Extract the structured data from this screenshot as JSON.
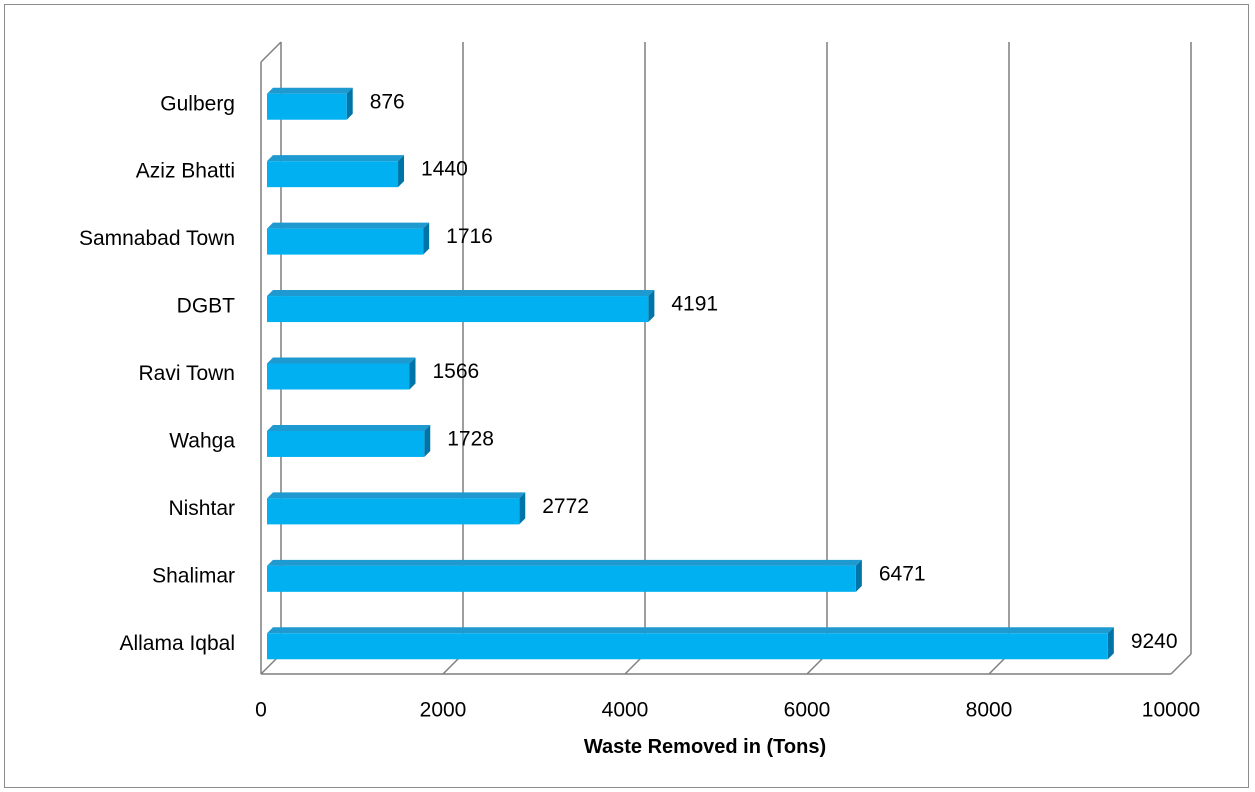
{
  "chart_data": {
    "type": "bar",
    "orientation": "horizontal",
    "style": "3d",
    "categories": [
      "Gulberg",
      "Aziz Bhatti",
      "Samnabad Town",
      "DGBT",
      "Ravi Town",
      "Wahga",
      "Nishtar",
      "Shalimar",
      "Allama Iqbal"
    ],
    "values": [
      876,
      1440,
      1716,
      4191,
      1566,
      1728,
      2772,
      6471,
      9240
    ],
    "data_labels": [
      "876",
      "1440",
      "1716",
      "4191",
      "1566",
      "1728",
      "2772",
      "6471",
      "9240"
    ],
    "xlabel": "Waste Removed in (Tons)",
    "xlim": [
      0,
      10000
    ],
    "xticks": [
      0,
      2000,
      4000,
      6000,
      8000,
      10000
    ],
    "xtick_labels": [
      "0",
      "2000",
      "4000",
      "6000",
      "8000",
      "10000"
    ],
    "grid": "vertical",
    "legend": "none",
    "colors": {
      "bar_front": "#00b0f0",
      "bar_top": "#1e9ad0",
      "bar_side": "#0074a6",
      "gridline": "#7f7f7f"
    }
  }
}
